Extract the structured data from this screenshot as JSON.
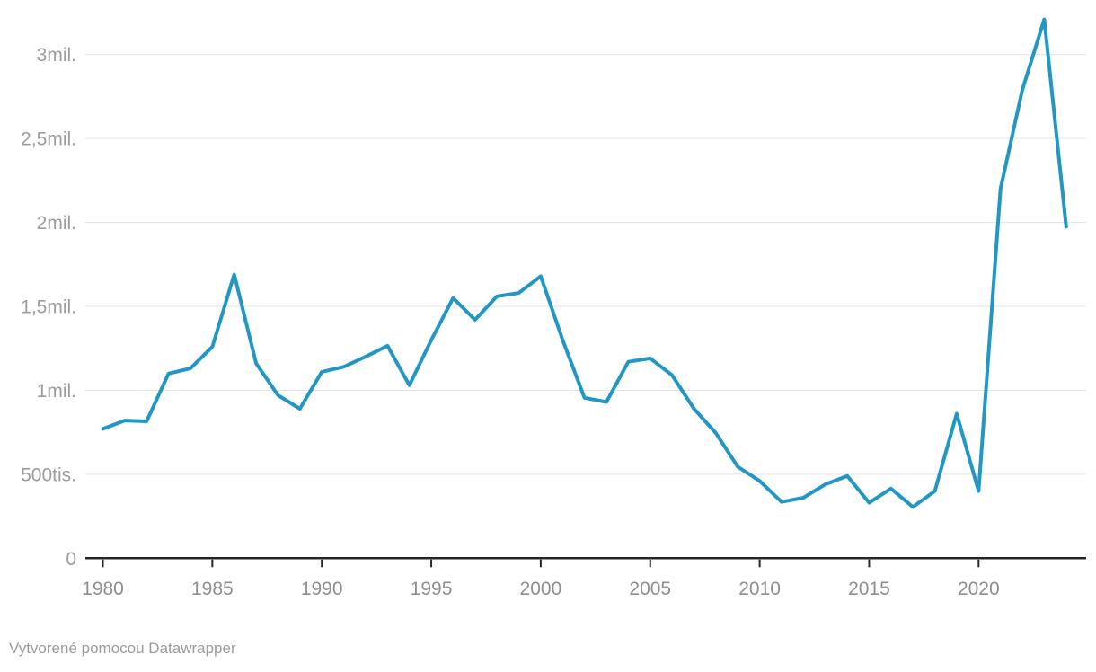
{
  "chart_data": {
    "type": "line",
    "title": "",
    "xlabel": "",
    "ylabel": "",
    "grid": "horizontal",
    "legend": "none",
    "xlim": [
      1980,
      2024
    ],
    "ylim": [
      0,
      3300000
    ],
    "x": [
      1980,
      1981,
      1982,
      1983,
      1984,
      1985,
      1986,
      1987,
      1988,
      1989,
      1990,
      1991,
      1992,
      1993,
      1994,
      1995,
      1996,
      1997,
      1998,
      1999,
      2000,
      2001,
      2002,
      2003,
      2004,
      2005,
      2006,
      2007,
      2008,
      2009,
      2010,
      2011,
      2012,
      2013,
      2014,
      2015,
      2016,
      2017,
      2018,
      2019,
      2020,
      2021,
      2022,
      2023,
      2024
    ],
    "values": [
      770000,
      820000,
      815000,
      1100000,
      1130000,
      1260000,
      1690000,
      1160000,
      970000,
      890000,
      1110000,
      1140000,
      1200000,
      1265000,
      1030000,
      1300000,
      1550000,
      1420000,
      1560000,
      1580000,
      1680000,
      1300000,
      955000,
      930000,
      1170000,
      1190000,
      1090000,
      890000,
      745000,
      545000,
      460000,
      335000,
      360000,
      440000,
      490000,
      330000,
      415000,
      305000,
      400000,
      860000,
      400000,
      2200000,
      2790000,
      3210000,
      1975000
    ],
    "y_ticks": [
      {
        "value": 0,
        "label": "0"
      },
      {
        "value": 500000,
        "label": "500tis."
      },
      {
        "value": 1000000,
        "label": "1mil."
      },
      {
        "value": 1500000,
        "label": "1,5mil."
      },
      {
        "value": 2000000,
        "label": "2mil."
      },
      {
        "value": 2500000,
        "label": "2,5mil."
      },
      {
        "value": 3000000,
        "label": "3mil."
      }
    ],
    "x_ticks": [
      {
        "value": 1980,
        "label": "1980"
      },
      {
        "value": 1985,
        "label": "1985"
      },
      {
        "value": 1990,
        "label": "1990"
      },
      {
        "value": 1995,
        "label": "1995"
      },
      {
        "value": 2000,
        "label": "2000"
      },
      {
        "value": 2005,
        "label": "2005"
      },
      {
        "value": 2010,
        "label": "2010"
      },
      {
        "value": 2015,
        "label": "2015"
      },
      {
        "value": 2020,
        "label": "2020"
      }
    ]
  },
  "colors": {
    "line": "#2397c4",
    "grid": "#e3e3e3",
    "axis": "#262626",
    "y_label": "#9c9c9c",
    "x_label": "#8e8e8e",
    "footer": "#9b9b9b",
    "background": "#ffffff"
  },
  "footer": {
    "attribution": "Vytvorené pomocou Datawrapper"
  }
}
